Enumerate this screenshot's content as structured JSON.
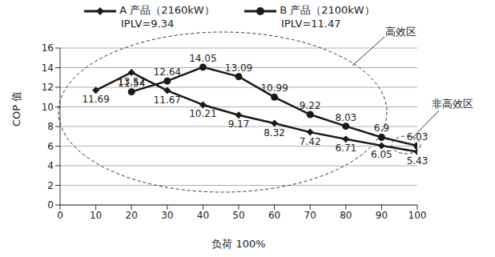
{
  "chart_data": {
    "type": "line",
    "x_label": "负荷 100%",
    "y_label": "COP 值",
    "x": [
      10,
      20,
      30,
      40,
      50,
      60,
      70,
      80,
      90,
      100
    ],
    "series": [
      {
        "name": "A 产品（2160kW）",
        "annotation": "IPLV=9.34",
        "color": "#1a1a1a",
        "marker": "diamond",
        "values": [
          11.69,
          13.52,
          11.67,
          10.21,
          9.17,
          8.32,
          7.42,
          6.71,
          6.05,
          5.43
        ]
      },
      {
        "name": "B 产品（2100kW）",
        "annotation": "IPLV=11.47",
        "color": "#1a1a1a",
        "marker": "circle",
        "values": [
          null,
          11.54,
          12.64,
          14.05,
          13.09,
          10.99,
          9.22,
          8.03,
          6.9,
          6.03
        ]
      }
    ],
    "annotations": [
      "高效区",
      "非高效区"
    ],
    "xlim": [
      0,
      100
    ],
    "xticks": [
      0,
      10,
      20,
      30,
      40,
      50,
      60,
      70,
      80,
      90,
      100
    ],
    "ylim": [
      0,
      16
    ],
    "yticks": [
      0,
      2,
      4,
      6,
      8,
      10,
      12,
      14,
      16
    ],
    "grid": true,
    "data_labels": true
  }
}
